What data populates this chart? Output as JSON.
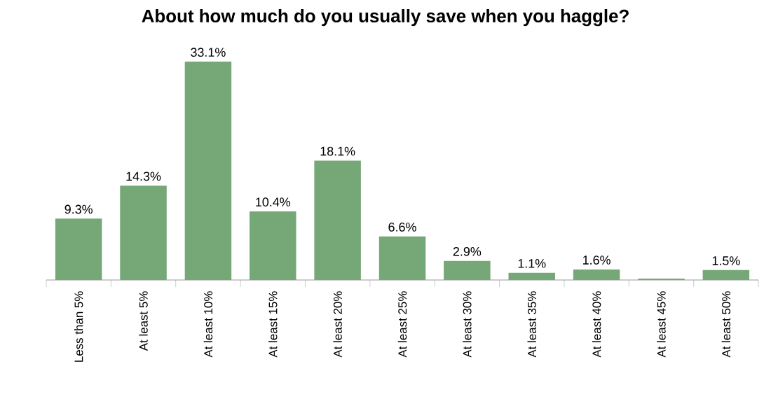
{
  "chart_data": {
    "type": "bar",
    "title": "About how much do you usually save when you haggle?",
    "categories": [
      "Less than  5%",
      "At least 5%",
      "At least 10%",
      "At least 15%",
      "At least 20%",
      "At least 25%",
      "At least 30%",
      "At least 35%",
      "At least 40%",
      "At least 45%",
      "At least 50%"
    ],
    "values": [
      9.3,
      14.3,
      33.1,
      10.4,
      18.1,
      6.6,
      2.9,
      1.1,
      1.6,
      0.2,
      1.5
    ],
    "value_labels": [
      "9.3%",
      "14.3%",
      "33.1%",
      "10.4%",
      "18.1%",
      "6.6%",
      "2.9%",
      "1.1%",
      "1.6%",
      null,
      "1.5%"
    ],
    "color": "#76a877",
    "tick_labels": "x"
  }
}
